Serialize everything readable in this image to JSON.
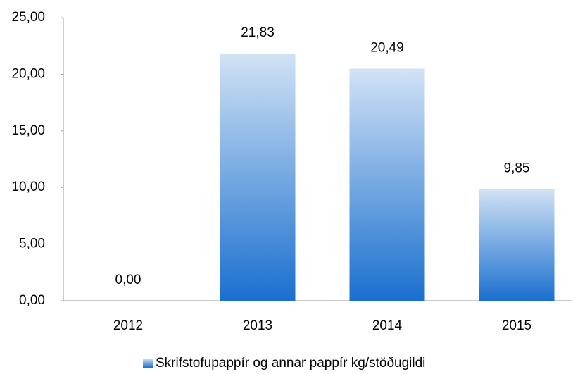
{
  "chart_data": {
    "type": "bar",
    "categories": [
      "2012",
      "2013",
      "2014",
      "2015"
    ],
    "series": [
      {
        "name": "Skrifstofupappír og annar pappír kg/stöðugildi",
        "color": "#1a6fcf",
        "values": [
          0,
          21.83,
          20.49,
          9.85
        ],
        "value_labels": [
          "0,00",
          "21,83",
          "20,49",
          "9,85"
        ]
      }
    ],
    "ylim": [
      0,
      25
    ],
    "yticks": [
      {
        "value": 0,
        "label": "0,00"
      },
      {
        "value": 5,
        "label": "5,00"
      },
      {
        "value": 10,
        "label": "10,00"
      },
      {
        "value": 15,
        "label": "15,00"
      },
      {
        "value": 20,
        "label": "20,00"
      },
      {
        "value": 25,
        "label": "25,00"
      }
    ],
    "grid": false,
    "legend": "bottom"
  }
}
